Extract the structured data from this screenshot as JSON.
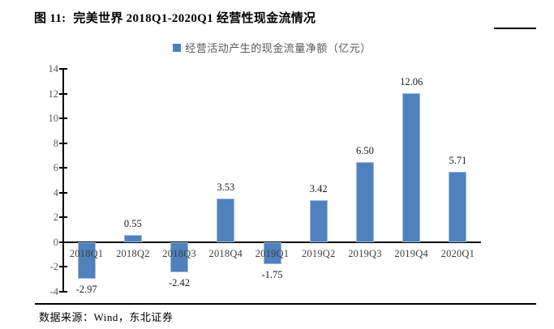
{
  "page": {
    "figure_label": "图  11:",
    "figure_title": "完美世界 2018Q1-2020Q1 经营性现金流情况",
    "source_text": "数据来源：Wind，东北证券"
  },
  "legend": {
    "marker_color": "#4F81BD",
    "label": "经营活动产生的现金流量净额（亿元）"
  },
  "chart_data": {
    "type": "bar",
    "title": "完美世界 2018Q1-2020Q1 经营性现金流情况",
    "legend_entries": [
      "经营活动产生的现金流量净额（亿元）"
    ],
    "categories": [
      "2018Q1",
      "2018Q2",
      "2018Q3",
      "2018Q4",
      "2019Q1",
      "2019Q2",
      "2019Q3",
      "2019Q4",
      "2020Q1"
    ],
    "values": [
      -2.97,
      0.55,
      -2.42,
      3.53,
      -1.75,
      3.42,
      6.5,
      12.06,
      5.71
    ],
    "xlabel": "",
    "ylabel": "",
    "ylim": [
      -4,
      14
    ],
    "ytick_step": 2,
    "yticks": [
      14,
      12,
      10,
      8,
      6,
      4,
      2,
      0,
      -2,
      -4
    ],
    "bar_color": "#4F81BD",
    "grid": false,
    "data_labels": true,
    "legend_position": "top-center"
  }
}
